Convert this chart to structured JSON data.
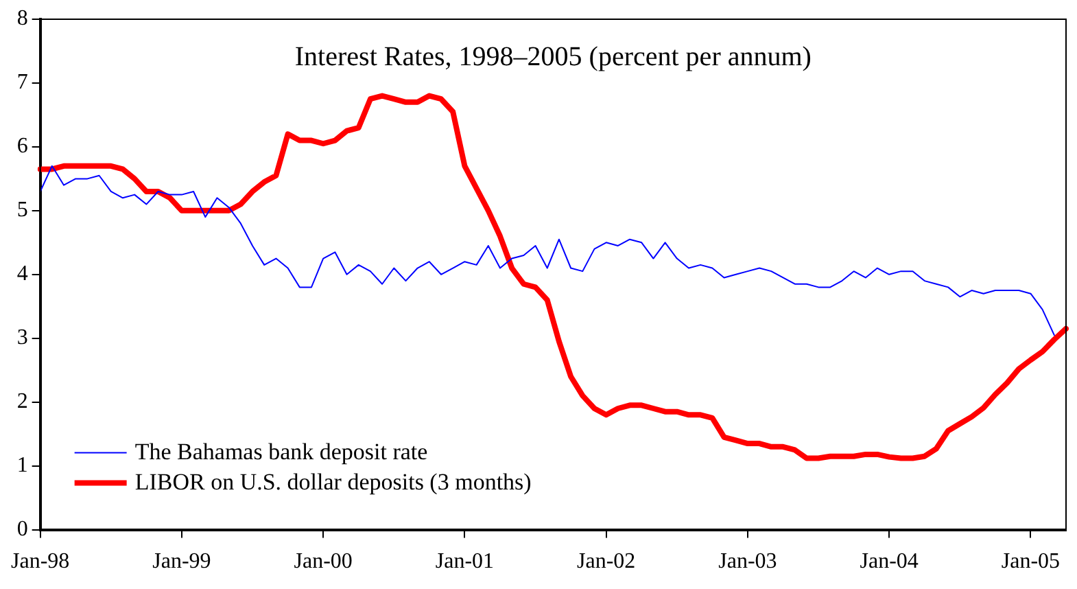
{
  "chart_data": {
    "type": "line",
    "title": "Interest Rates, 1998–2005 (percent per annum)",
    "categories": [
      "Jan-98",
      null,
      null,
      null,
      null,
      null,
      null,
      null,
      null,
      null,
      null,
      null,
      "Jan-99",
      null,
      null,
      null,
      null,
      null,
      null,
      null,
      null,
      null,
      null,
      null,
      "Jan-00",
      null,
      null,
      null,
      null,
      null,
      null,
      null,
      null,
      null,
      null,
      null,
      "Jan-01",
      null,
      null,
      null,
      null,
      null,
      null,
      null,
      null,
      null,
      null,
      null,
      "Jan-02",
      null,
      null,
      null,
      null,
      null,
      null,
      null,
      null,
      null,
      null,
      null,
      "Jan-03",
      null,
      null,
      null,
      null,
      null,
      null,
      null,
      null,
      null,
      null,
      null,
      "Jan-04",
      null,
      null,
      null,
      null,
      null,
      null,
      null,
      null,
      null,
      null,
      null,
      "Jan-05",
      null,
      null,
      null
    ],
    "series": [
      {
        "name": "The Bahamas bank deposit rate",
        "color": "#0000ff",
        "values": [
          5.3,
          5.7,
          5.4,
          5.5,
          5.5,
          5.55,
          5.3,
          5.2,
          5.25,
          5.1,
          5.3,
          5.25,
          5.25,
          5.3,
          4.9,
          5.2,
          5.05,
          4.8,
          4.45,
          4.15,
          4.25,
          4.1,
          3.8,
          3.8,
          4.25,
          4.35,
          4.0,
          4.15,
          4.05,
          3.85,
          4.1,
          3.9,
          4.1,
          4.2,
          4.0,
          4.1,
          4.2,
          4.15,
          4.45,
          4.1,
          4.25,
          4.3,
          4.45,
          4.1,
          4.55,
          4.1,
          4.05,
          4.4,
          4.5,
          4.45,
          4.55,
          4.5,
          4.25,
          4.5,
          4.25,
          4.1,
          4.15,
          4.1,
          3.95,
          4.0,
          4.05,
          4.1,
          4.05,
          3.95,
          3.85,
          3.85,
          3.8,
          3.8,
          3.9,
          4.05,
          3.95,
          4.1,
          4.0,
          4.05,
          4.05,
          3.9,
          3.85,
          3.8,
          3.65,
          3.75,
          3.7,
          3.75,
          3.75,
          3.75,
          3.7,
          3.45,
          3.05,
          null
        ]
      },
      {
        "name": "LIBOR on U.S. dollar deposits (3 months)",
        "color": "#ff0000",
        "values": [
          5.65,
          5.65,
          5.7,
          5.7,
          5.7,
          5.7,
          5.7,
          5.65,
          5.5,
          5.3,
          5.3,
          5.2,
          5.0,
          5.0,
          5.0,
          5.0,
          5.0,
          5.1,
          5.3,
          5.45,
          5.55,
          6.2,
          6.1,
          6.1,
          6.05,
          6.1,
          6.25,
          6.3,
          6.75,
          6.8,
          6.75,
          6.7,
          6.7,
          6.8,
          6.75,
          6.55,
          5.7,
          5.35,
          5.0,
          4.6,
          4.1,
          3.85,
          3.8,
          3.6,
          2.95,
          2.4,
          2.1,
          1.9,
          1.8,
          1.9,
          1.95,
          1.95,
          1.9,
          1.85,
          1.85,
          1.8,
          1.8,
          1.75,
          1.45,
          1.4,
          1.35,
          1.35,
          1.3,
          1.3,
          1.25,
          1.12,
          1.12,
          1.15,
          1.15,
          1.15,
          1.18,
          1.18,
          1.14,
          1.12,
          1.12,
          1.15,
          1.27,
          1.55,
          1.66,
          1.77,
          1.91,
          2.12,
          2.3,
          2.52,
          2.66,
          2.79,
          2.98,
          3.15
        ]
      }
    ],
    "ylim": [
      0,
      8
    ],
    "yticks": [
      0,
      1,
      2,
      3,
      4,
      5,
      6,
      7,
      8
    ],
    "grid": false,
    "legend": "bottom left",
    "marker": "none",
    "line_style": "solid"
  }
}
